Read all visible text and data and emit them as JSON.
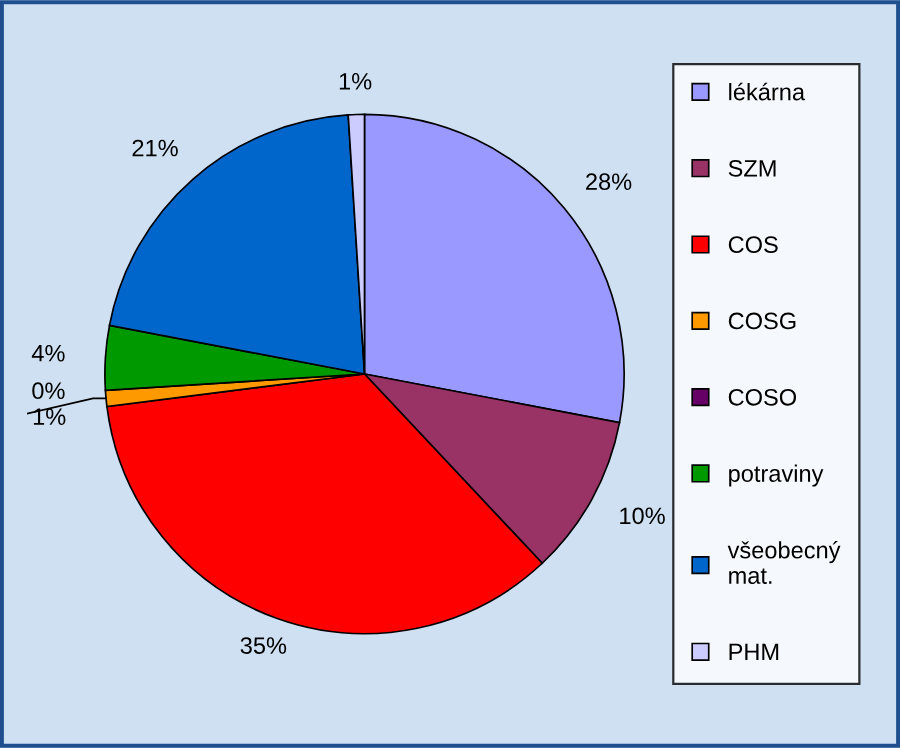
{
  "chart_data": {
    "type": "pie",
    "categories": [
      "lékárna",
      "SZM",
      "COS",
      "COSG",
      "COSO",
      "potraviny",
      "všeobecný mat.",
      "PHM"
    ],
    "values": [
      28,
      10,
      35,
      1,
      0,
      4,
      21,
      1
    ],
    "value_labels": [
      "28%",
      "10%",
      "35%",
      "1%",
      "0%",
      "4%",
      "21%",
      "1%"
    ],
    "colors": [
      "#9999ff",
      "#993366",
      "#ff0000",
      "#ff9900",
      "#660066",
      "#009900",
      "#0066cc",
      "#ccccff"
    ],
    "legend": "right"
  }
}
